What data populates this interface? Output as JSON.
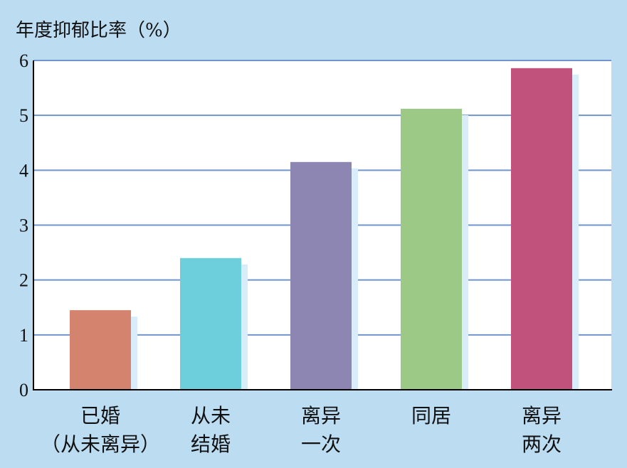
{
  "chart_data": {
    "type": "bar",
    "ylabel": "年度抑郁比率（%）",
    "ylim": [
      0,
      6
    ],
    "yticks": [
      "0",
      "1",
      "2",
      "3",
      "4",
      "5",
      "6"
    ],
    "grid": true,
    "categories": [
      [
        "已婚",
        "（从未离异）"
      ],
      [
        "从未",
        "结婚"
      ],
      [
        "离异",
        "一次"
      ],
      [
        "同居"
      ],
      [
        "离异",
        "两次"
      ]
    ],
    "values": [
      1.45,
      2.4,
      4.15,
      5.12,
      5.86
    ],
    "colors": [
      "#d4846e",
      "#6ecfdc",
      "#8e86b2",
      "#9cc985",
      "#c0527c"
    ],
    "shadow_color": "#d8ecfa",
    "grid_color": "#6f95cc",
    "plot_background": "#ffffff"
  }
}
